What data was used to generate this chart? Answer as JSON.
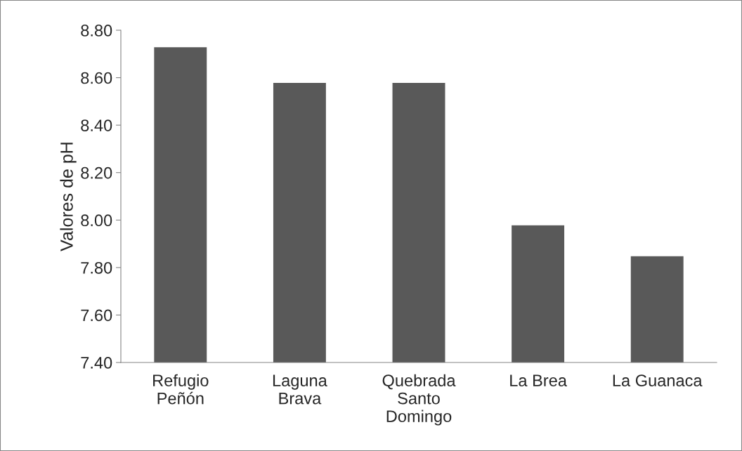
{
  "chart_data": {
    "type": "bar",
    "ylabel": "Valores de pH",
    "categories": [
      "Refugio\nPeñón",
      "Laguna\nBrava",
      "Quebrada\nSanto\nDomingo",
      "La Brea",
      "La Guanaca"
    ],
    "values": [
      8.73,
      8.58,
      8.58,
      7.98,
      7.85
    ],
    "color": "#595959",
    "ylim": [
      7.4,
      8.8
    ],
    "yticks": [
      {
        "value": 7.4,
        "label": "7.40"
      },
      {
        "value": 7.6,
        "label": "7.60"
      },
      {
        "value": 7.8,
        "label": "7.80"
      },
      {
        "value": 8.0,
        "label": "8.00"
      },
      {
        "value": 8.2,
        "label": "8.20"
      },
      {
        "value": 8.4,
        "label": "8.40"
      },
      {
        "value": 8.6,
        "label": "8.60"
      },
      {
        "value": 8.8,
        "label": "8.80"
      }
    ],
    "grid": false,
    "legend": false
  }
}
